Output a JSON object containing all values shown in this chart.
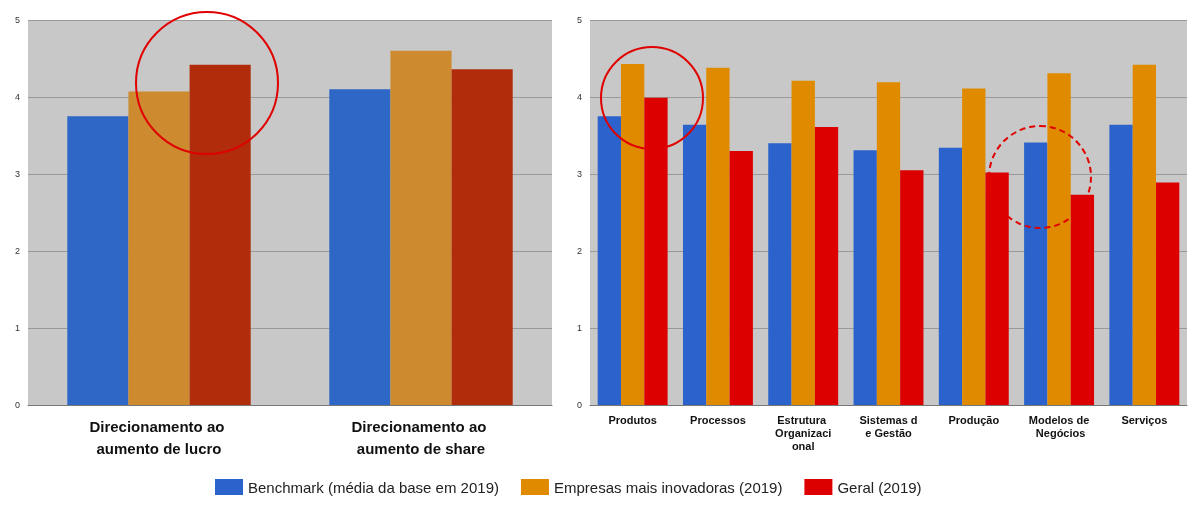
{
  "chart_data": [
    {
      "type": "bar",
      "categories": [
        "Direcionamento ao aumento de lucro",
        "Direcionamento ao aumento de share"
      ],
      "series": [
        {
          "color": "#2e67c6",
          "values": [
            3.75,
            4.1
          ]
        },
        {
          "color": "#cd8a2e",
          "values": [
            4.07,
            4.6
          ]
        },
        {
          "color": "#b02c0b",
          "values": [
            4.42,
            4.36
          ]
        }
      ],
      "ylim": [
        0,
        5
      ],
      "yticks": [
        0,
        1,
        2,
        3,
        4,
        5
      ],
      "grid": "y"
    },
    {
      "type": "bar",
      "categories": [
        "Produtos",
        "Processos",
        "Estrutura Organizacional",
        "Sistemas de Gestão",
        "Produção",
        "Modelos de Negócios",
        "Serviços"
      ],
      "series": [
        {
          "name": "Benchmark (média da base em 2019)",
          "color": "#2b62cc",
          "values": [
            3.75,
            3.64,
            3.4,
            3.31,
            3.34,
            3.41,
            3.64
          ]
        },
        {
          "name": "Empresas mais inovadoras (2019)",
          "color": "#e08a00",
          "values": [
            4.43,
            4.38,
            4.21,
            4.19,
            4.11,
            4.31,
            4.42
          ]
        },
        {
          "name": "Geral (2019)",
          "color": "#dd0000",
          "values": [
            3.99,
            3.3,
            3.61,
            3.05,
            3.02,
            2.73,
            2.89
          ]
        }
      ],
      "ylim": [
        0,
        5
      ],
      "yticks": [
        0,
        1,
        2,
        3,
        4,
        5
      ],
      "grid": "y",
      "legend": "bottom"
    }
  ]
}
